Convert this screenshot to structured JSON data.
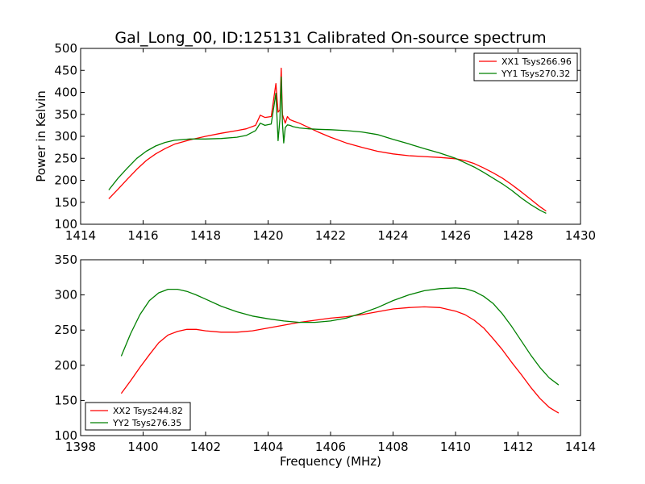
{
  "title": "Gal_Long_00, ID:125131 Calibrated On-source spectrum",
  "chart_data": [
    {
      "type": "line",
      "xlabel": "",
      "ylabel": "Power in Kelvin",
      "xlim": [
        1414,
        1430
      ],
      "ylim": [
        100,
        500
      ],
      "xticks": [
        1414,
        1416,
        1418,
        1420,
        1422,
        1424,
        1426,
        1428,
        1430
      ],
      "yticks": [
        100,
        150,
        200,
        250,
        300,
        350,
        400,
        450,
        500
      ],
      "grid": false,
      "legend_position": "top-right",
      "series": [
        {
          "name": "XX1 Tsys266.96",
          "color": "#ff0000",
          "x": [
            1414.9,
            1415.2,
            1415.5,
            1415.8,
            1416.1,
            1416.4,
            1416.7,
            1417.0,
            1417.5,
            1418.0,
            1418.5,
            1419.0,
            1419.3,
            1419.6,
            1419.75,
            1419.9,
            1420.1,
            1420.25,
            1420.32,
            1420.38,
            1420.42,
            1420.46,
            1420.5,
            1420.55,
            1420.62,
            1420.7,
            1420.8,
            1421.0,
            1421.3,
            1421.6,
            1422.0,
            1422.5,
            1423.0,
            1423.5,
            1424.0,
            1424.5,
            1425.0,
            1425.5,
            1426.0,
            1426.3,
            1426.6,
            1426.9,
            1427.2,
            1427.5,
            1427.8,
            1428.1,
            1428.4,
            1428.7,
            1428.9
          ],
          "y": [
            158,
            180,
            203,
            225,
            245,
            260,
            272,
            282,
            292,
            300,
            307,
            313,
            317,
            325,
            348,
            343,
            345,
            420,
            355,
            360,
            455,
            350,
            340,
            330,
            345,
            338,
            335,
            330,
            320,
            310,
            298,
            285,
            275,
            266,
            260,
            256,
            254,
            252,
            249,
            245,
            238,
            228,
            217,
            205,
            190,
            174,
            157,
            140,
            130
          ]
        },
        {
          "name": "YY1 Tsys270.32",
          "color": "#008000",
          "x": [
            1414.9,
            1415.2,
            1415.5,
            1415.8,
            1416.1,
            1416.4,
            1416.7,
            1417.0,
            1417.5,
            1418.0,
            1418.5,
            1419.0,
            1419.3,
            1419.6,
            1419.75,
            1419.9,
            1420.1,
            1420.25,
            1420.32,
            1420.38,
            1420.42,
            1420.46,
            1420.5,
            1420.55,
            1420.62,
            1420.7,
            1420.8,
            1421.0,
            1421.3,
            1421.6,
            1422.0,
            1422.5,
            1423.0,
            1423.5,
            1424.0,
            1424.5,
            1425.0,
            1425.5,
            1426.0,
            1426.3,
            1426.6,
            1426.9,
            1427.2,
            1427.5,
            1427.8,
            1428.1,
            1428.4,
            1428.7,
            1428.9
          ],
          "y": [
            178,
            205,
            228,
            250,
            266,
            278,
            286,
            291,
            294,
            294,
            295,
            298,
            302,
            313,
            330,
            325,
            328,
            398,
            290,
            340,
            435,
            330,
            285,
            320,
            326,
            325,
            322,
            319,
            317,
            316,
            315,
            313,
            310,
            304,
            293,
            283,
            272,
            262,
            250,
            240,
            230,
            218,
            205,
            192,
            177,
            160,
            145,
            132,
            125
          ]
        }
      ]
    },
    {
      "type": "line",
      "xlabel": "Frequency (MHz)",
      "ylabel": "",
      "xlim": [
        1398,
        1414
      ],
      "ylim": [
        100,
        350
      ],
      "xticks": [
        1398,
        1400,
        1402,
        1404,
        1406,
        1408,
        1410,
        1412,
        1414
      ],
      "yticks": [
        100,
        150,
        200,
        250,
        300,
        350
      ],
      "grid": false,
      "legend_position": "bottom-left",
      "series": [
        {
          "name": "XX2 Tsys244.82",
          "color": "#ff0000",
          "x": [
            1399.3,
            1399.6,
            1399.9,
            1400.2,
            1400.5,
            1400.8,
            1401.1,
            1401.4,
            1401.7,
            1402.0,
            1402.5,
            1403.0,
            1403.5,
            1404.0,
            1404.5,
            1405.0,
            1405.5,
            1406.0,
            1406.5,
            1407.0,
            1407.5,
            1408.0,
            1408.5,
            1409.0,
            1409.5,
            1410.0,
            1410.3,
            1410.6,
            1410.9,
            1411.2,
            1411.5,
            1411.8,
            1412.1,
            1412.4,
            1412.7,
            1413.0,
            1413.3
          ],
          "y": [
            160,
            178,
            197,
            215,
            232,
            243,
            248,
            251,
            251,
            249,
            247,
            247,
            249,
            253,
            257,
            261,
            264,
            267,
            269,
            272,
            276,
            280,
            282,
            283,
            282,
            277,
            272,
            264,
            253,
            238,
            222,
            204,
            187,
            169,
            153,
            140,
            132
          ]
        },
        {
          "name": "YY2 Tsys276.35",
          "color": "#008000",
          "x": [
            1399.3,
            1399.6,
            1399.9,
            1400.2,
            1400.5,
            1400.8,
            1401.1,
            1401.4,
            1401.7,
            1402.0,
            1402.5,
            1403.0,
            1403.5,
            1404.0,
            1404.5,
            1405.0,
            1405.5,
            1406.0,
            1406.5,
            1407.0,
            1407.5,
            1408.0,
            1408.5,
            1409.0,
            1409.5,
            1410.0,
            1410.3,
            1410.6,
            1410.9,
            1411.2,
            1411.5,
            1411.8,
            1412.1,
            1412.4,
            1412.7,
            1413.0,
            1413.3
          ],
          "y": [
            213,
            245,
            272,
            292,
            303,
            308,
            308,
            305,
            300,
            294,
            284,
            276,
            270,
            266,
            263,
            261,
            261,
            263,
            267,
            274,
            282,
            292,
            300,
            306,
            309,
            310,
            309,
            305,
            298,
            288,
            273,
            255,
            235,
            215,
            197,
            182,
            172
          ]
        }
      ]
    }
  ]
}
